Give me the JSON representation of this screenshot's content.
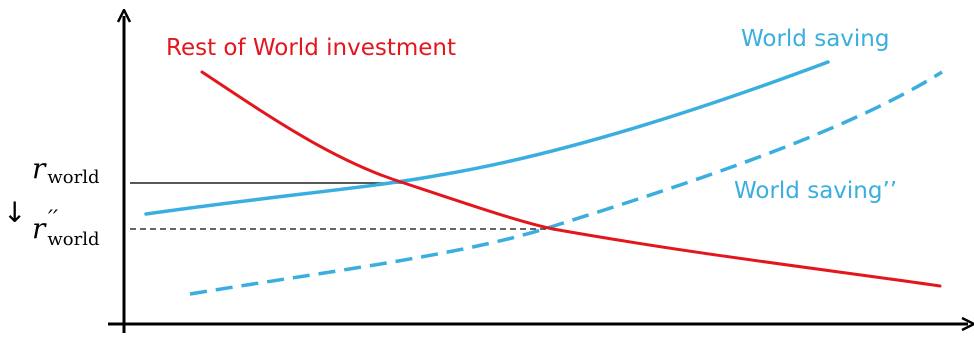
{
  "labels": {
    "investment": "Rest of World investment",
    "saving": "World saving",
    "saving_shifted": "World saving’’",
    "rate_symbol": "r",
    "rate_subscript": "world",
    "rate_prime": "′′",
    "shift_arrow": "↓"
  },
  "colors": {
    "investment": "#e3161d",
    "saving": "#3aaede",
    "axis": "#000000",
    "guide": "#333333"
  }
}
